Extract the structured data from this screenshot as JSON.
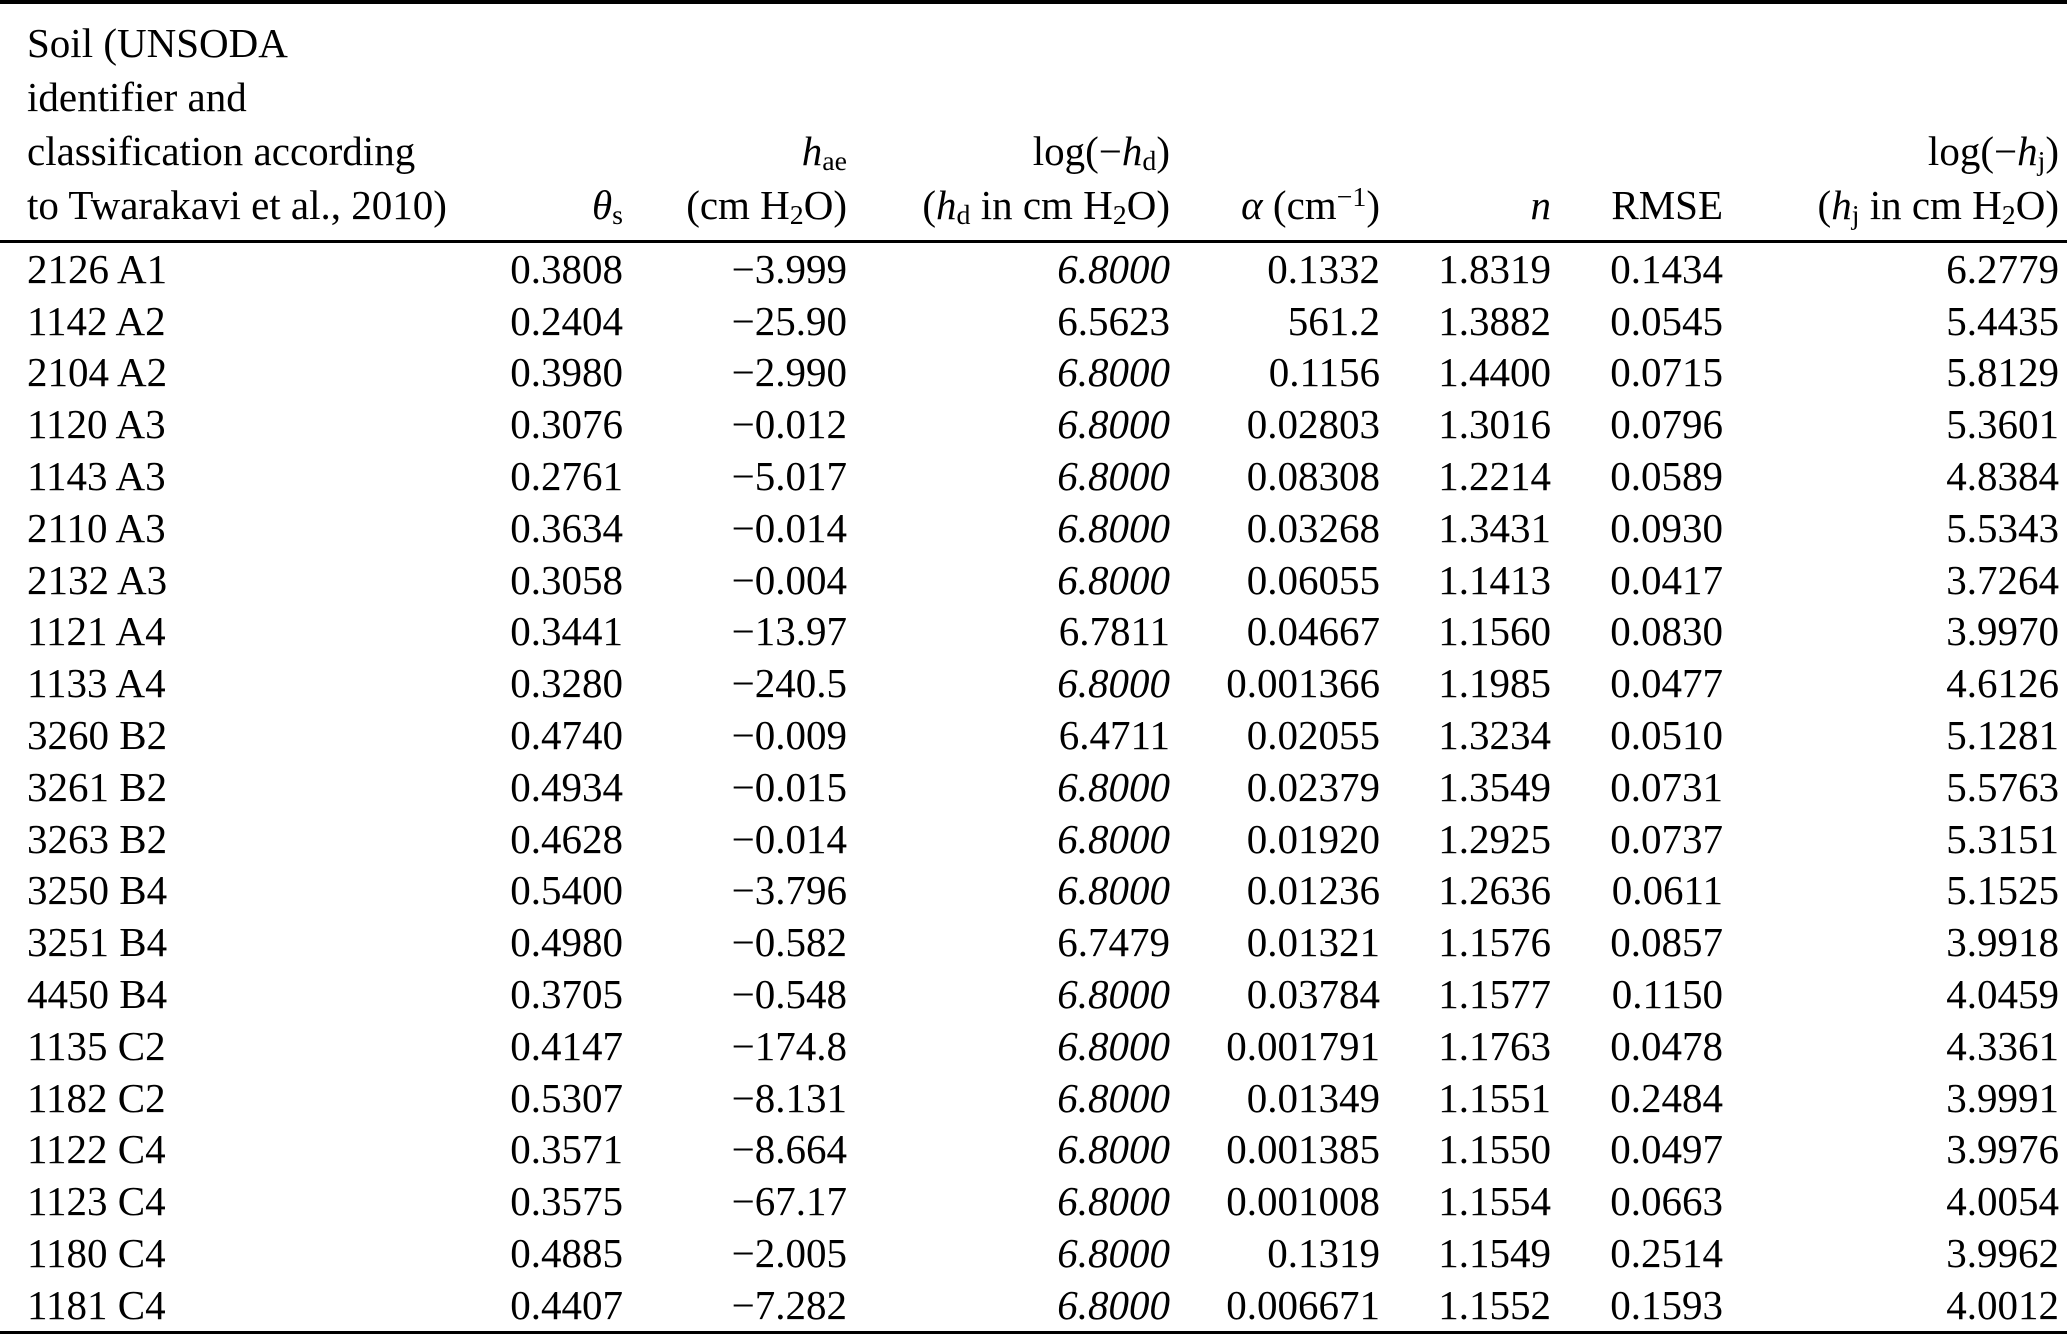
{
  "colors": {
    "text": "#000000",
    "background": "#ffffff",
    "rule": "#000000"
  },
  "table": {
    "header": {
      "soil_lines": [
        "Soil (UNSODA",
        "identifier and",
        "classification according",
        "to Twarakavi et al., 2010)"
      ],
      "theta": {
        "sym": "θ",
        "sub": "s"
      },
      "hae": {
        "sym": "h",
        "sub": "ae",
        "unit_pre": "(cm H",
        "unit_sub": "2",
        "unit_post": "O)"
      },
      "loghd": {
        "l1_pre": "log(−",
        "sym": "h",
        "sub": "d",
        "l1_post": ")",
        "l2_pre": "(",
        "l2_mid": " in cm H",
        "l2_sub": "2",
        "l2_post": "O)"
      },
      "alpha": {
        "sym": "α",
        "pre": " (cm",
        "sup": "−1",
        "post": ")"
      },
      "n_sym": "n",
      "rmse": "RMSE",
      "loghj": {
        "l1_pre": "log(−",
        "sym": "h",
        "sub": "j",
        "l1_post": ")",
        "l2_pre": "(",
        "l2_mid": " in cm H",
        "l2_sub": "2",
        "l2_post": "O)"
      }
    },
    "rows": [
      {
        "soil": "2126 A1",
        "theta_s": "0.3808",
        "h_ae": "−3.999",
        "log_hd": "6.8000",
        "hd_italic": true,
        "alpha": "0.1332",
        "n": "1.8319",
        "rmse": "0.1434",
        "log_hj": "6.2779"
      },
      {
        "soil": "1142 A2",
        "theta_s": "0.2404",
        "h_ae": "−25.90",
        "log_hd": "6.5623",
        "hd_italic": false,
        "alpha": "561.2",
        "n": "1.3882",
        "rmse": "0.0545",
        "log_hj": "5.4435"
      },
      {
        "soil": "2104 A2",
        "theta_s": "0.3980",
        "h_ae": "−2.990",
        "log_hd": "6.8000",
        "hd_italic": true,
        "alpha": "0.1156",
        "n": "1.4400",
        "rmse": "0.0715",
        "log_hj": "5.8129"
      },
      {
        "soil": "1120 A3",
        "theta_s": "0.3076",
        "h_ae": "−0.012",
        "log_hd": "6.8000",
        "hd_italic": true,
        "alpha": "0.02803",
        "n": "1.3016",
        "rmse": "0.0796",
        "log_hj": "5.3601"
      },
      {
        "soil": "1143 A3",
        "theta_s": "0.2761",
        "h_ae": "−5.017",
        "log_hd": "6.8000",
        "hd_italic": true,
        "alpha": "0.08308",
        "n": "1.2214",
        "rmse": "0.0589",
        "log_hj": "4.8384"
      },
      {
        "soil": "2110 A3",
        "theta_s": "0.3634",
        "h_ae": "−0.014",
        "log_hd": "6.8000",
        "hd_italic": true,
        "alpha": "0.03268",
        "n": "1.3431",
        "rmse": "0.0930",
        "log_hj": "5.5343"
      },
      {
        "soil": "2132 A3",
        "theta_s": "0.3058",
        "h_ae": "−0.004",
        "log_hd": "6.8000",
        "hd_italic": true,
        "alpha": "0.06055",
        "n": "1.1413",
        "rmse": "0.0417",
        "log_hj": "3.7264"
      },
      {
        "soil": "1121 A4",
        "theta_s": "0.3441",
        "h_ae": "−13.97",
        "log_hd": "6.7811",
        "hd_italic": false,
        "alpha": "0.04667",
        "n": "1.1560",
        "rmse": "0.0830",
        "log_hj": "3.9970"
      },
      {
        "soil": "1133 A4",
        "theta_s": "0.3280",
        "h_ae": "−240.5",
        "log_hd": "6.8000",
        "hd_italic": true,
        "alpha": "0.001366",
        "n": "1.1985",
        "rmse": "0.0477",
        "log_hj": "4.6126"
      },
      {
        "soil": "3260 B2",
        "theta_s": "0.4740",
        "h_ae": "−0.009",
        "log_hd": "6.4711",
        "hd_italic": false,
        "alpha": "0.02055",
        "n": "1.3234",
        "rmse": "0.0510",
        "log_hj": "5.1281"
      },
      {
        "soil": "3261 B2",
        "theta_s": "0.4934",
        "h_ae": "−0.015",
        "log_hd": "6.8000",
        "hd_italic": true,
        "alpha": "0.02379",
        "n": "1.3549",
        "rmse": "0.0731",
        "log_hj": "5.5763"
      },
      {
        "soil": "3263 B2",
        "theta_s": "0.4628",
        "h_ae": "−0.014",
        "log_hd": "6.8000",
        "hd_italic": true,
        "alpha": "0.01920",
        "n": "1.2925",
        "rmse": "0.0737",
        "log_hj": "5.3151"
      },
      {
        "soil": "3250 B4",
        "theta_s": "0.5400",
        "h_ae": "−3.796",
        "log_hd": "6.8000",
        "hd_italic": true,
        "alpha": "0.01236",
        "n": "1.2636",
        "rmse": "0.0611",
        "log_hj": "5.1525"
      },
      {
        "soil": "3251 B4",
        "theta_s": "0.4980",
        "h_ae": "−0.582",
        "log_hd": "6.7479",
        "hd_italic": false,
        "alpha": "0.01321",
        "n": "1.1576",
        "rmse": "0.0857",
        "log_hj": "3.9918"
      },
      {
        "soil": "4450 B4",
        "theta_s": "0.3705",
        "h_ae": "−0.548",
        "log_hd": "6.8000",
        "hd_italic": true,
        "alpha": "0.03784",
        "n": "1.1577",
        "rmse": "0.1150",
        "log_hj": "4.0459"
      },
      {
        "soil": "1135 C2",
        "theta_s": "0.4147",
        "h_ae": "−174.8",
        "log_hd": "6.8000",
        "hd_italic": true,
        "alpha": "0.001791",
        "n": "1.1763",
        "rmse": "0.0478",
        "log_hj": "4.3361"
      },
      {
        "soil": "1182 C2",
        "theta_s": "0.5307",
        "h_ae": "−8.131",
        "log_hd": "6.8000",
        "hd_italic": true,
        "alpha": "0.01349",
        "n": "1.1551",
        "rmse": "0.2484",
        "log_hj": "3.9991"
      },
      {
        "soil": "1122 C4",
        "theta_s": "0.3571",
        "h_ae": "−8.664",
        "log_hd": "6.8000",
        "hd_italic": true,
        "alpha": "0.001385",
        "n": "1.1550",
        "rmse": "0.0497",
        "log_hj": "3.9976"
      },
      {
        "soil": "1123 C4",
        "theta_s": "0.3575",
        "h_ae": "−67.17",
        "log_hd": "6.8000",
        "hd_italic": true,
        "alpha": "0.001008",
        "n": "1.1554",
        "rmse": "0.0663",
        "log_hj": "4.0054"
      },
      {
        "soil": "1180 C4",
        "theta_s": "0.4885",
        "h_ae": "−2.005",
        "log_hd": "6.8000",
        "hd_italic": true,
        "alpha": "0.1319",
        "n": "1.1549",
        "rmse": "0.2514",
        "log_hj": "3.9962"
      },
      {
        "soil": "1181 C4",
        "theta_s": "0.4407",
        "h_ae": "−7.282",
        "log_hd": "6.8000",
        "hd_italic": true,
        "alpha": "0.006671",
        "n": "1.1552",
        "rmse": "0.1593",
        "log_hj": "4.0012"
      }
    ]
  }
}
